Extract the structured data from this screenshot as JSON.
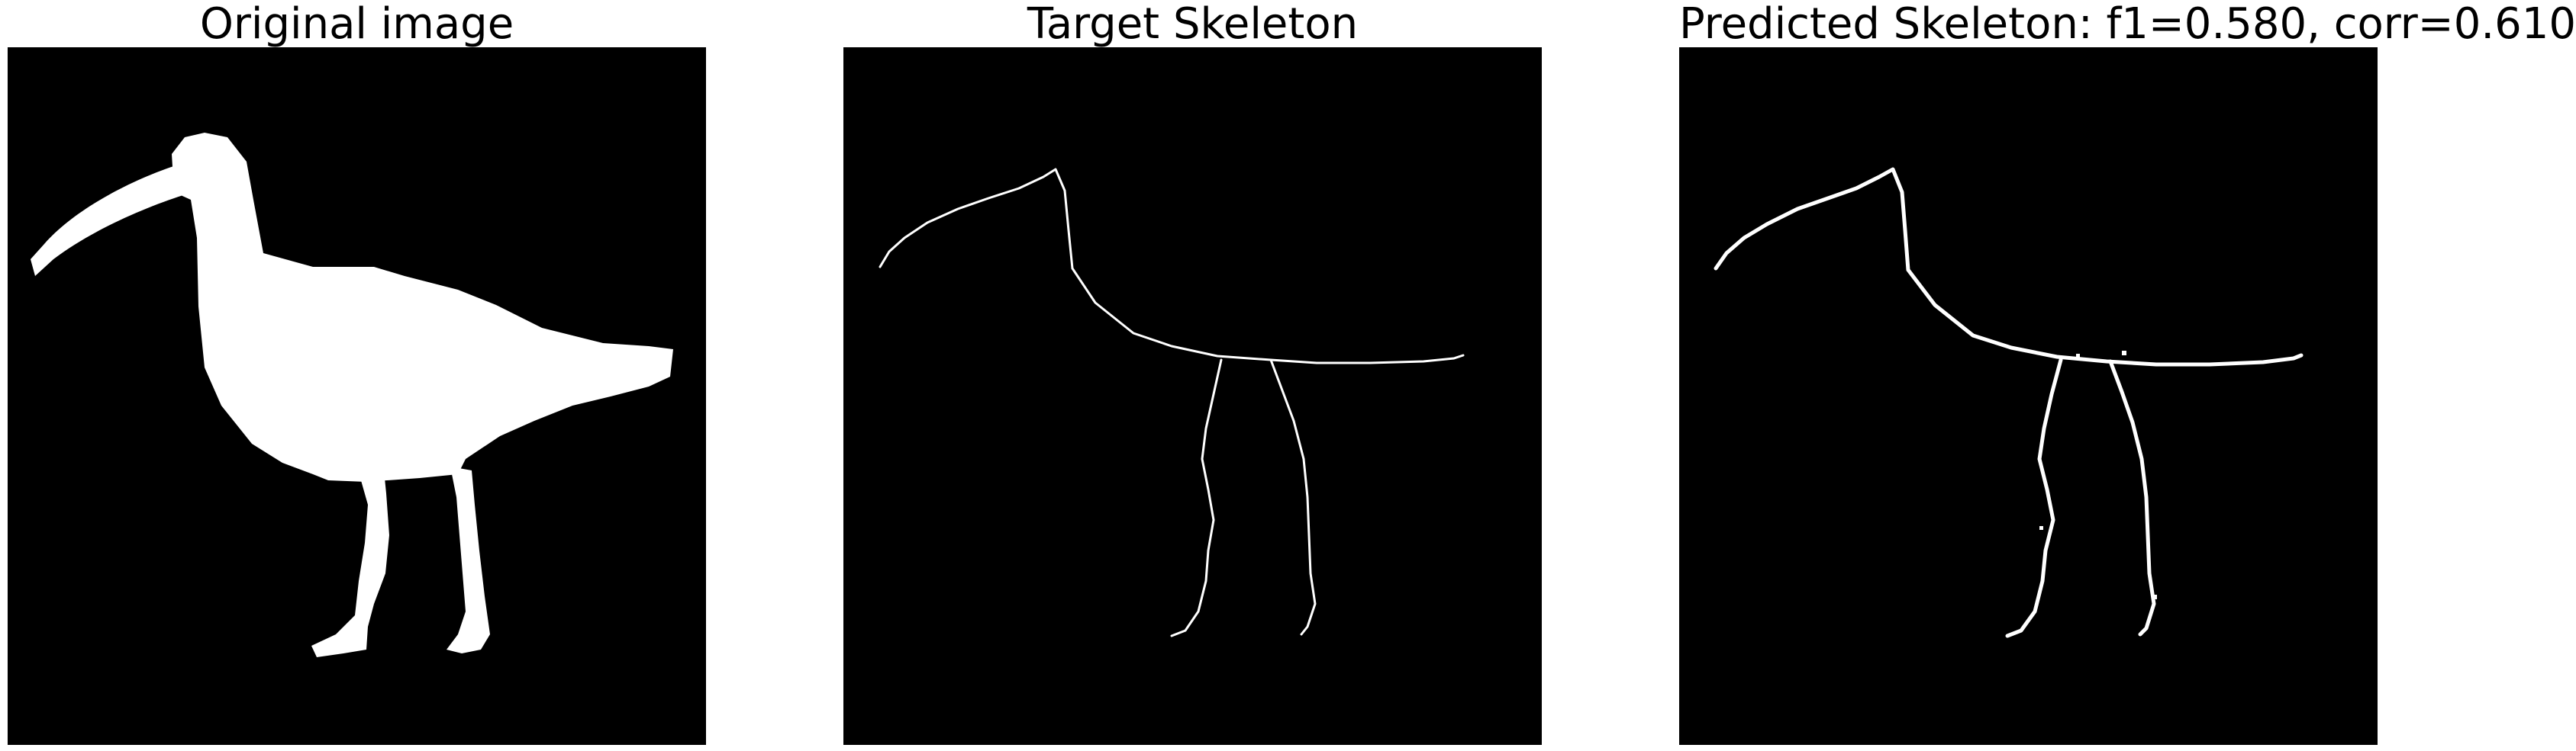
{
  "panels": [
    {
      "title": "Original image"
    },
    {
      "title": "Target Skeleton"
    },
    {
      "title": "Predicted Skeleton: f1=0.580, corr=0.610"
    }
  ],
  "colors": {
    "background": "#000000",
    "foreground": "#ffffff",
    "title": "#000000"
  }
}
